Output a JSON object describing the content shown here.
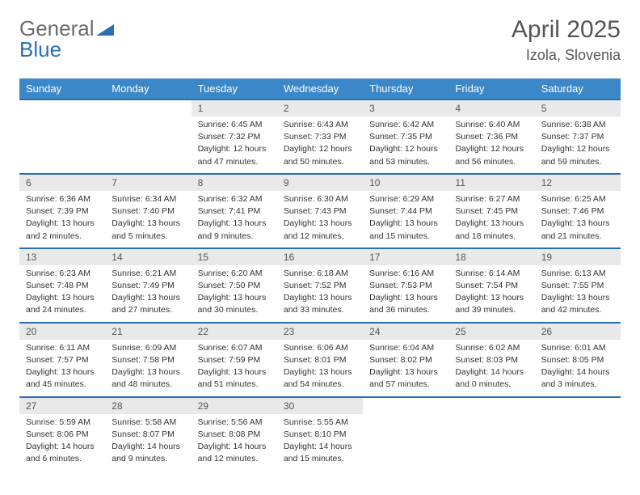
{
  "brand": {
    "part1": "General",
    "part2": "Blue"
  },
  "title": "April 2025",
  "location": "Izola, Slovenia",
  "colors": {
    "header_bg": "#3b87c8",
    "border": "#2a6fb5",
    "daynum_bg": "#e9e9e9",
    "text": "#333333",
    "title_text": "#555555"
  },
  "weekdays": [
    "Sunday",
    "Monday",
    "Tuesday",
    "Wednesday",
    "Thursday",
    "Friday",
    "Saturday"
  ],
  "weeks": [
    [
      null,
      null,
      {
        "d": "1",
        "sr": "Sunrise: 6:45 AM",
        "ss": "Sunset: 7:32 PM",
        "dl1": "Daylight: 12 hours",
        "dl2": "and 47 minutes."
      },
      {
        "d": "2",
        "sr": "Sunrise: 6:43 AM",
        "ss": "Sunset: 7:33 PM",
        "dl1": "Daylight: 12 hours",
        "dl2": "and 50 minutes."
      },
      {
        "d": "3",
        "sr": "Sunrise: 6:42 AM",
        "ss": "Sunset: 7:35 PM",
        "dl1": "Daylight: 12 hours",
        "dl2": "and 53 minutes."
      },
      {
        "d": "4",
        "sr": "Sunrise: 6:40 AM",
        "ss": "Sunset: 7:36 PM",
        "dl1": "Daylight: 12 hours",
        "dl2": "and 56 minutes."
      },
      {
        "d": "5",
        "sr": "Sunrise: 6:38 AM",
        "ss": "Sunset: 7:37 PM",
        "dl1": "Daylight: 12 hours",
        "dl2": "and 59 minutes."
      }
    ],
    [
      {
        "d": "6",
        "sr": "Sunrise: 6:36 AM",
        "ss": "Sunset: 7:39 PM",
        "dl1": "Daylight: 13 hours",
        "dl2": "and 2 minutes."
      },
      {
        "d": "7",
        "sr": "Sunrise: 6:34 AM",
        "ss": "Sunset: 7:40 PM",
        "dl1": "Daylight: 13 hours",
        "dl2": "and 5 minutes."
      },
      {
        "d": "8",
        "sr": "Sunrise: 6:32 AM",
        "ss": "Sunset: 7:41 PM",
        "dl1": "Daylight: 13 hours",
        "dl2": "and 9 minutes."
      },
      {
        "d": "9",
        "sr": "Sunrise: 6:30 AM",
        "ss": "Sunset: 7:43 PM",
        "dl1": "Daylight: 13 hours",
        "dl2": "and 12 minutes."
      },
      {
        "d": "10",
        "sr": "Sunrise: 6:29 AM",
        "ss": "Sunset: 7:44 PM",
        "dl1": "Daylight: 13 hours",
        "dl2": "and 15 minutes."
      },
      {
        "d": "11",
        "sr": "Sunrise: 6:27 AM",
        "ss": "Sunset: 7:45 PM",
        "dl1": "Daylight: 13 hours",
        "dl2": "and 18 minutes."
      },
      {
        "d": "12",
        "sr": "Sunrise: 6:25 AM",
        "ss": "Sunset: 7:46 PM",
        "dl1": "Daylight: 13 hours",
        "dl2": "and 21 minutes."
      }
    ],
    [
      {
        "d": "13",
        "sr": "Sunrise: 6:23 AM",
        "ss": "Sunset: 7:48 PM",
        "dl1": "Daylight: 13 hours",
        "dl2": "and 24 minutes."
      },
      {
        "d": "14",
        "sr": "Sunrise: 6:21 AM",
        "ss": "Sunset: 7:49 PM",
        "dl1": "Daylight: 13 hours",
        "dl2": "and 27 minutes."
      },
      {
        "d": "15",
        "sr": "Sunrise: 6:20 AM",
        "ss": "Sunset: 7:50 PM",
        "dl1": "Daylight: 13 hours",
        "dl2": "and 30 minutes."
      },
      {
        "d": "16",
        "sr": "Sunrise: 6:18 AM",
        "ss": "Sunset: 7:52 PM",
        "dl1": "Daylight: 13 hours",
        "dl2": "and 33 minutes."
      },
      {
        "d": "17",
        "sr": "Sunrise: 6:16 AM",
        "ss": "Sunset: 7:53 PM",
        "dl1": "Daylight: 13 hours",
        "dl2": "and 36 minutes."
      },
      {
        "d": "18",
        "sr": "Sunrise: 6:14 AM",
        "ss": "Sunset: 7:54 PM",
        "dl1": "Daylight: 13 hours",
        "dl2": "and 39 minutes."
      },
      {
        "d": "19",
        "sr": "Sunrise: 6:13 AM",
        "ss": "Sunset: 7:55 PM",
        "dl1": "Daylight: 13 hours",
        "dl2": "and 42 minutes."
      }
    ],
    [
      {
        "d": "20",
        "sr": "Sunrise: 6:11 AM",
        "ss": "Sunset: 7:57 PM",
        "dl1": "Daylight: 13 hours",
        "dl2": "and 45 minutes."
      },
      {
        "d": "21",
        "sr": "Sunrise: 6:09 AM",
        "ss": "Sunset: 7:58 PM",
        "dl1": "Daylight: 13 hours",
        "dl2": "and 48 minutes."
      },
      {
        "d": "22",
        "sr": "Sunrise: 6:07 AM",
        "ss": "Sunset: 7:59 PM",
        "dl1": "Daylight: 13 hours",
        "dl2": "and 51 minutes."
      },
      {
        "d": "23",
        "sr": "Sunrise: 6:06 AM",
        "ss": "Sunset: 8:01 PM",
        "dl1": "Daylight: 13 hours",
        "dl2": "and 54 minutes."
      },
      {
        "d": "24",
        "sr": "Sunrise: 6:04 AM",
        "ss": "Sunset: 8:02 PM",
        "dl1": "Daylight: 13 hours",
        "dl2": "and 57 minutes."
      },
      {
        "d": "25",
        "sr": "Sunrise: 6:02 AM",
        "ss": "Sunset: 8:03 PM",
        "dl1": "Daylight: 14 hours",
        "dl2": "and 0 minutes."
      },
      {
        "d": "26",
        "sr": "Sunrise: 6:01 AM",
        "ss": "Sunset: 8:05 PM",
        "dl1": "Daylight: 14 hours",
        "dl2": "and 3 minutes."
      }
    ],
    [
      {
        "d": "27",
        "sr": "Sunrise: 5:59 AM",
        "ss": "Sunset: 8:06 PM",
        "dl1": "Daylight: 14 hours",
        "dl2": "and 6 minutes."
      },
      {
        "d": "28",
        "sr": "Sunrise: 5:58 AM",
        "ss": "Sunset: 8:07 PM",
        "dl1": "Daylight: 14 hours",
        "dl2": "and 9 minutes."
      },
      {
        "d": "29",
        "sr": "Sunrise: 5:56 AM",
        "ss": "Sunset: 8:08 PM",
        "dl1": "Daylight: 14 hours",
        "dl2": "and 12 minutes."
      },
      {
        "d": "30",
        "sr": "Sunrise: 5:55 AM",
        "ss": "Sunset: 8:10 PM",
        "dl1": "Daylight: 14 hours",
        "dl2": "and 15 minutes."
      },
      null,
      null,
      null
    ]
  ]
}
